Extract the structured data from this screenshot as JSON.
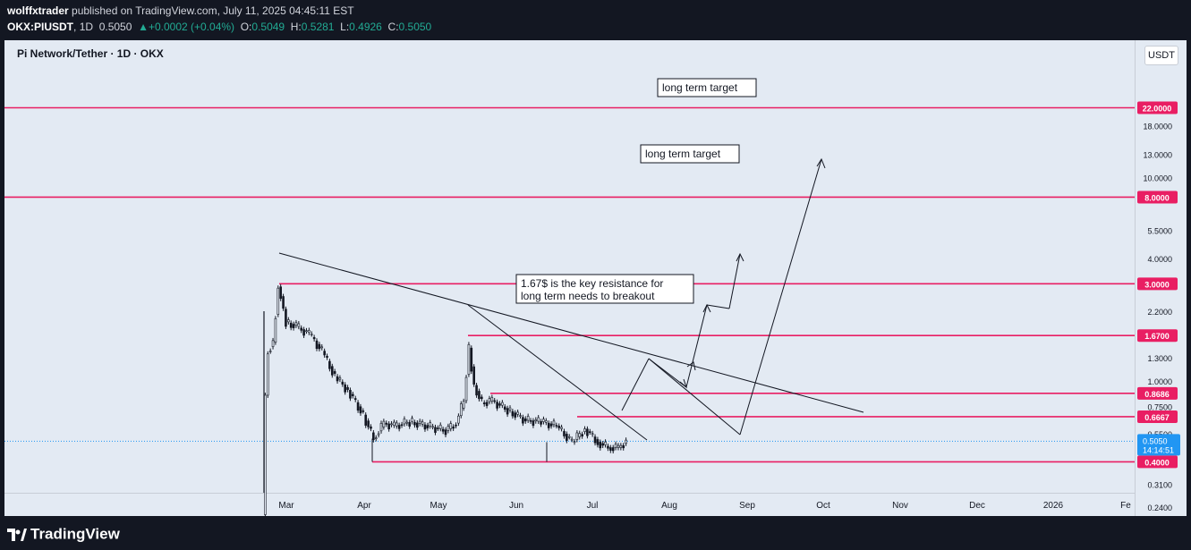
{
  "header": {
    "publisher": "wolffxtrader",
    "published_text": "published on TradingView.com, July 11, 2025 04:45:11 EST",
    "symbol": "OKX:PIUSDT",
    "interval": "1D",
    "last": "0.5050",
    "change": "+0.0002 (+0.04%)",
    "o_label": "O:",
    "o": "0.5049",
    "h_label": "H:",
    "h": "0.5281",
    "l_label": "L:",
    "l": "0.4926",
    "c_label": "C:",
    "c": "0.5050"
  },
  "chart_title": "Pi Network/Tether · 1D · OKX",
  "currency_button": "USDT",
  "footer_brand": "TradingView",
  "colors": {
    "level": "#e91e63",
    "price": "#2196f3",
    "candle": "#131722",
    "panel": "#e3eaf3"
  },
  "chart_data": {
    "type": "candlestick",
    "title": "Pi Network/Tether · 1D · OKX",
    "y_scale": "log",
    "ylim": [
      0.21,
      24
    ],
    "x_ticks": [
      "Mar",
      "Apr",
      "May",
      "Jun",
      "Jul",
      "Aug",
      "Sep",
      "Oct",
      "Nov",
      "Dec",
      "2026",
      "Fe"
    ],
    "y_ticks": [
      "18.0000",
      "13.0000",
      "10.0000",
      "5.5000",
      "4.0000",
      "2.2000",
      "1.3000",
      "1.0000",
      "0.7500",
      "0.5500",
      "0.3100",
      "0.2400"
    ],
    "levels": [
      {
        "value": 22.0,
        "label": "22.0000"
      },
      {
        "value": 8.0,
        "label": "8.0000"
      },
      {
        "value": 3.0,
        "label": "3.0000"
      },
      {
        "value": 1.67,
        "label": "1.6700"
      },
      {
        "value": 0.8686,
        "label": "0.8686"
      },
      {
        "value": 0.6667,
        "label": "0.6667"
      },
      {
        "value": 0.4,
        "label": "0.4000"
      }
    ],
    "last_price": {
      "value": 0.505,
      "label": "0.5050",
      "countdown": "14:14:51"
    },
    "annotations": [
      "long term target",
      "long term target",
      "1.67$ is the key resistance for long term needs to breakout"
    ],
    "price_path": [
      [
        "2025-02-20",
        0.22
      ],
      [
        "2025-02-21",
        0.85
      ],
      [
        "2025-02-22",
        1.4
      ],
      [
        "2025-02-24",
        1.55
      ],
      [
        "2025-02-26",
        2.9
      ],
      [
        "2025-02-27",
        2.6
      ],
      [
        "2025-03-01",
        1.95
      ],
      [
        "2025-03-05",
        1.85
      ],
      [
        "2025-03-10",
        1.7
      ],
      [
        "2025-03-15",
        1.4
      ],
      [
        "2025-03-20",
        1.05
      ],
      [
        "2025-03-25",
        0.9
      ],
      [
        "2025-03-31",
        0.68
      ],
      [
        "2025-04-04",
        0.52
      ],
      [
        "2025-04-08",
        0.62
      ],
      [
        "2025-04-12",
        0.6
      ],
      [
        "2025-04-18",
        0.63
      ],
      [
        "2025-04-25",
        0.6
      ],
      [
        "2025-05-02",
        0.57
      ],
      [
        "2025-05-06",
        0.62
      ],
      [
        "2025-05-09",
        0.8
      ],
      [
        "2025-05-11",
        1.45
      ],
      [
        "2025-05-13",
        0.95
      ],
      [
        "2025-05-16",
        0.78
      ],
      [
        "2025-05-20",
        0.8
      ],
      [
        "2025-05-26",
        0.72
      ],
      [
        "2025-06-02",
        0.64
      ],
      [
        "2025-06-08",
        0.63
      ],
      [
        "2025-06-14",
        0.6
      ],
      [
        "2025-06-20",
        0.5
      ],
      [
        "2025-06-25",
        0.58
      ],
      [
        "2025-06-30",
        0.5
      ],
      [
        "2025-07-04",
        0.47
      ],
      [
        "2025-07-08",
        0.47
      ],
      [
        "2025-07-11",
        0.505
      ]
    ]
  }
}
